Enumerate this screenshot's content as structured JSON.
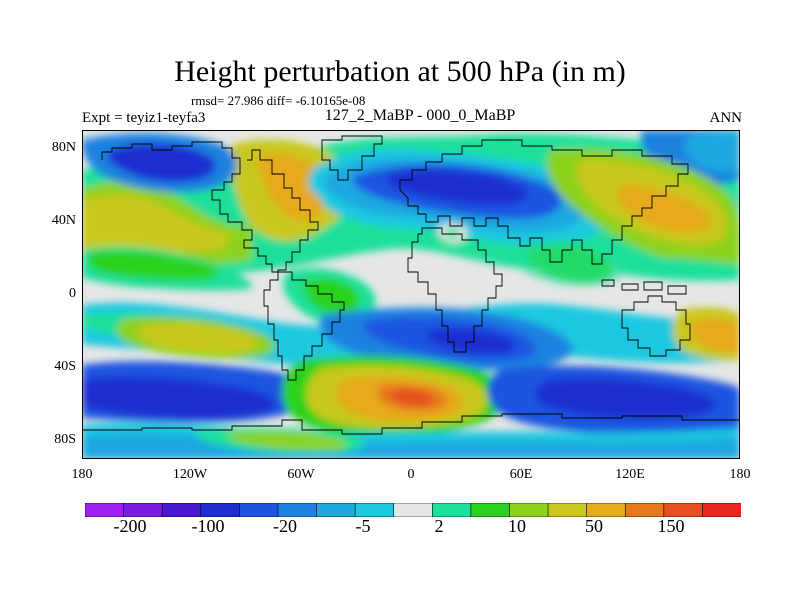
{
  "header": {
    "title": "Height perturbation at 500 hPa (in m)",
    "stats": "rmsd= 27.986 diff= -6.10165e-08",
    "experiment": "Expt = teyiz1-teyfa3",
    "subtitle": "127_2_MaBP - 000_0_MaBP",
    "season": "ANN"
  },
  "axes": {
    "lat_labels": [
      "80N",
      "40N",
      "0",
      "40S",
      "80S"
    ],
    "lon_labels": [
      "180",
      "120W",
      "60W",
      "0",
      "60E",
      "120E",
      "180"
    ],
    "lat_range": [
      -90,
      90
    ],
    "lon_range": [
      -180,
      180
    ]
  },
  "colorbar": {
    "labels": [
      "-200",
      "-100",
      "-20",
      "-5",
      "2",
      "10",
      "50",
      "150"
    ],
    "colors": [
      "#a020f0",
      "#7a1de0",
      "#4a18d0",
      "#1e2ed0",
      "#1e54e0",
      "#1e82e0",
      "#1ea8e0",
      "#1ec8e0",
      "#e6e6e6",
      "#1ee09a",
      "#2ad21e",
      "#8cd21e",
      "#c8c81e",
      "#e6aa1e",
      "#e6781e",
      "#e6501e",
      "#e6281e"
    ]
  },
  "map_fill": {
    "background": "#e6e6e6",
    "key_colors": {
      "deep_blue": "#1e2ed0",
      "blue": "#1e54e0",
      "mid_blue": "#1e82e0",
      "light_blue": "#1ea8e0",
      "cyan": "#1ec8e0",
      "green": "#1ee09a",
      "lime": "#2ad21e",
      "yellow_green": "#8cd21e",
      "olive": "#c8c81e",
      "gold": "#e6aa1e",
      "orange": "#e6781e",
      "red_orange": "#e6501e"
    }
  }
}
